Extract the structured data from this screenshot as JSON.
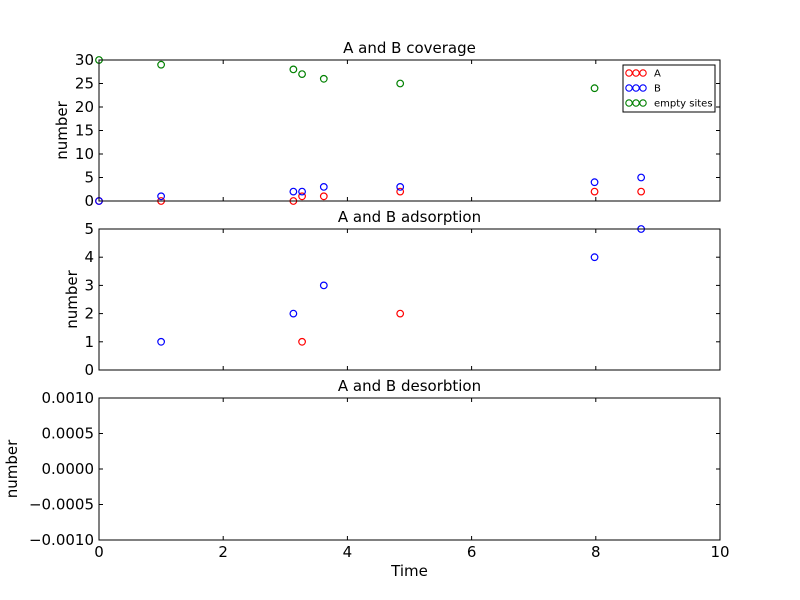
{
  "chart_data": [
    {
      "type": "scatter",
      "title": "A and B coverage",
      "xlabel": "",
      "ylabel": "number",
      "xlim": [
        0,
        10
      ],
      "ylim": [
        0,
        30
      ],
      "xticks": [
        "0",
        "2",
        "4",
        "6",
        "8",
        "10"
      ],
      "yticks": [
        "0",
        "5",
        "10",
        "15",
        "20",
        "25",
        "30"
      ],
      "show_xtick_labels": false,
      "legend": "top-right",
      "series": [
        {
          "name": "A",
          "color": "#ff0000",
          "x": [
            0,
            1.0,
            3.13,
            3.27,
            3.62,
            4.85,
            7.98,
            8.73
          ],
          "y": [
            0,
            0,
            0,
            1,
            1,
            2,
            2,
            2
          ]
        },
        {
          "name": "B",
          "color": "#0000ff",
          "x": [
            0,
            1.0,
            3.13,
            3.27,
            3.62,
            4.85,
            7.98,
            8.73
          ],
          "y": [
            0,
            1,
            2,
            2,
            3,
            3,
            4,
            5
          ]
        },
        {
          "name": "empty sites",
          "color": "#008000",
          "x": [
            0,
            1.0,
            3.13,
            3.27,
            3.62,
            4.85,
            7.98,
            8.73
          ],
          "y": [
            30,
            29,
            28,
            27,
            26,
            25,
            24,
            23
          ]
        }
      ]
    },
    {
      "type": "scatter",
      "title": "A and B adsorption",
      "xlabel": "",
      "ylabel": "number",
      "xlim": [
        0,
        10
      ],
      "ylim": [
        0,
        5
      ],
      "xticks": [
        "0",
        "2",
        "4",
        "6",
        "8",
        "10"
      ],
      "yticks": [
        "0",
        "1",
        "2",
        "3",
        "4",
        "5"
      ],
      "show_xtick_labels": false,
      "series": [
        {
          "color": "#ff0000",
          "x": [
            3.27,
            4.85
          ],
          "y": [
            1,
            2
          ]
        },
        {
          "color": "#0000ff",
          "x": [
            1.0,
            3.13,
            3.62,
            7.98,
            8.73
          ],
          "y": [
            1,
            2,
            3,
            4,
            5
          ]
        }
      ]
    },
    {
      "type": "scatter",
      "title": "A and B desorbtion",
      "xlabel": "Time",
      "ylabel": "number",
      "xlim": [
        0,
        10
      ],
      "ylim": [
        -0.001,
        0.001
      ],
      "xticks": [
        "0",
        "2",
        "4",
        "6",
        "8",
        "10"
      ],
      "yticks": [
        "−0.0010",
        "−0.0005",
        "0.0000",
        "0.0005",
        "0.0010"
      ],
      "show_xtick_labels": true,
      "series": []
    }
  ]
}
